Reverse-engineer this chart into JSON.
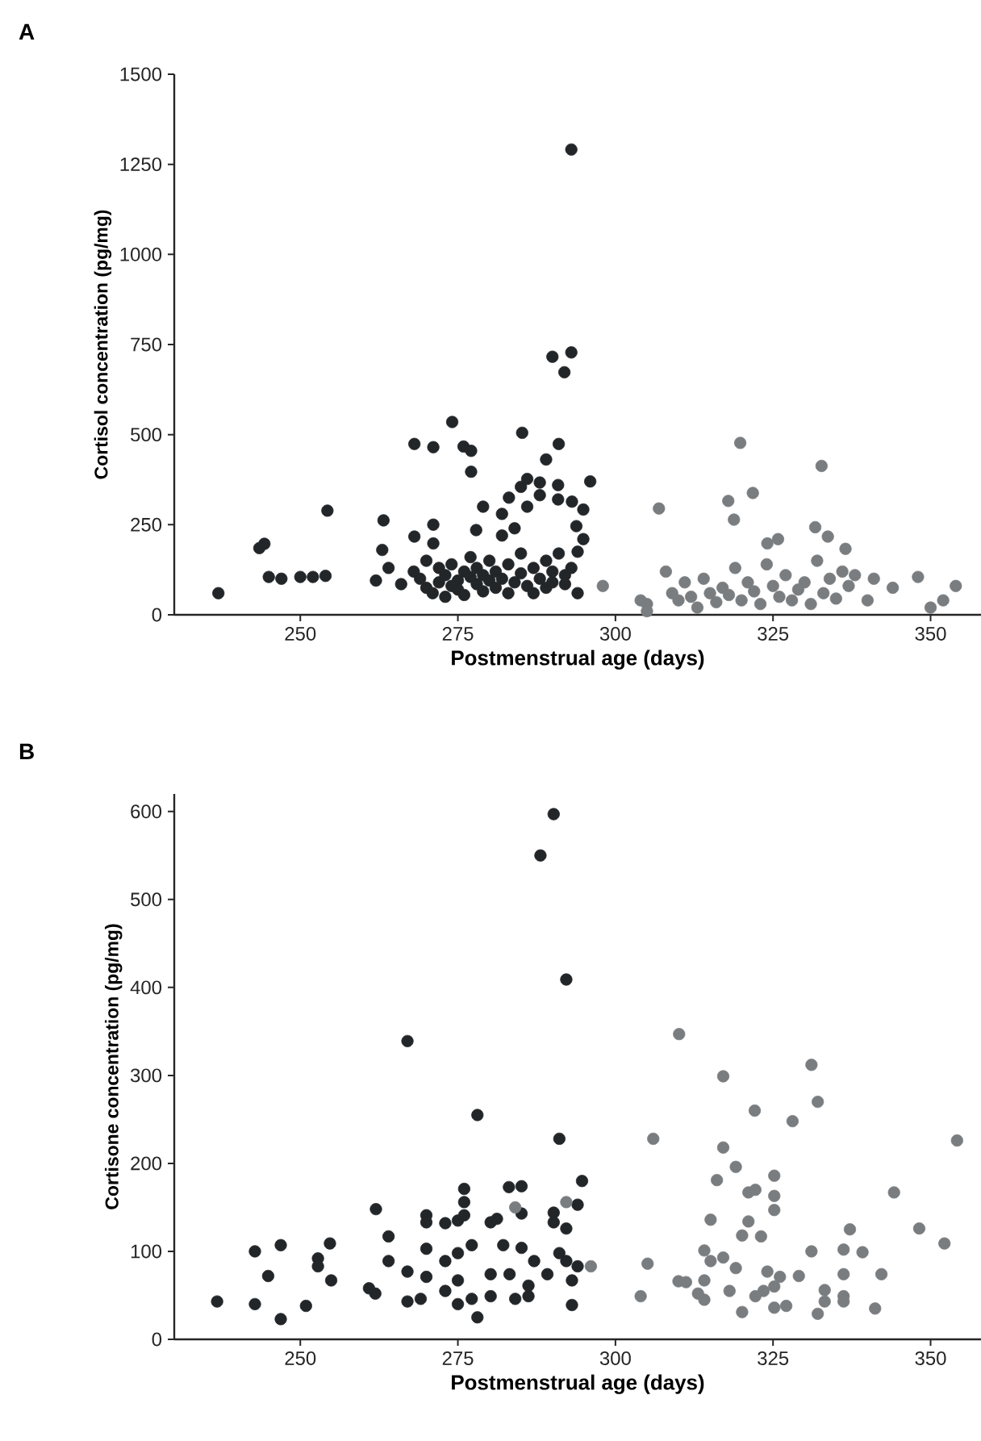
{
  "chart_data": [
    {
      "type": "scatter",
      "title": "A",
      "xlabel": "Postmenstrual age (days)",
      "ylabel": "Cortisol concentration (pg/mg)",
      "xlim": [
        230,
        358
      ],
      "xticks": [
        250,
        275,
        300,
        325,
        350
      ],
      "ylim": [
        0,
        1500
      ],
      "yticks": [
        0,
        250,
        500,
        750,
        1000,
        1250,
        1500
      ],
      "marker": "circle",
      "series": [
        {
          "color": "#222629",
          "x": [
            293.0,
            290.0,
            293.0,
            291.9,
            274.1,
            268.1,
            271.1,
            275.9,
            277.1,
            285.2,
            291.0,
            289.0,
            277.1,
            286.0,
            285.0,
            288.0,
            288.0,
            290.9,
            290.9,
            293.1,
            283.1,
            286.0,
            279.0,
            282.0,
            254.3,
            263.2,
            271.1,
            268.1,
            244.3,
            271.1,
            277.9,
            282.0,
            284.0,
            293.8,
            296.0,
            294.9,
            294.9,
            237,
            243.5,
            245,
            247,
            250,
            252,
            254,
            262,
            263,
            264,
            266,
            268,
            269,
            270,
            270,
            271,
            272,
            272,
            273,
            273,
            274,
            274,
            275,
            275,
            276,
            276,
            277,
            277,
            278,
            278,
            279,
            279,
            280,
            280,
            281,
            281,
            282,
            283,
            283,
            284,
            285,
            285,
            286,
            287,
            287,
            288,
            289,
            289,
            290,
            290,
            291,
            292,
            292,
            293,
            294,
            294
          ],
          "values": [
            1291,
            716,
            728,
            673,
            535,
            474,
            465,
            467,
            455,
            505,
            474,
            431,
            397,
            377,
            355,
            367,
            332,
            360,
            320,
            314,
            325,
            300,
            300,
            280,
            289,
            262,
            250,
            217,
            197,
            198,
            235,
            220,
            240,
            246,
            370,
            292,
            210,
            60,
            185,
            105,
            100,
            105,
            105,
            108,
            95,
            180,
            130,
            85,
            120,
            100,
            75,
            150,
            60,
            90,
            130,
            110,
            50,
            80,
            140,
            95,
            70,
            120,
            55,
            105,
            160,
            85,
            130,
            65,
            110,
            95,
            150,
            75,
            120,
            100,
            60,
            140,
            90,
            170,
            115,
            80,
            130,
            60,
            100,
            150,
            75,
            120,
            90,
            170,
            110,
            85,
            130,
            60,
            175
          ]
        },
        {
          "color": "#7a7d80",
          "x": [
            306.9,
            319.8,
            317.9,
            321.8,
            318.8,
            332.7,
            331.7,
            333.7,
            324.1,
            325.8,
            336.5,
            298,
            304,
            305,
            305,
            308,
            309,
            310,
            311,
            312,
            313,
            314,
            315,
            316,
            317,
            318,
            319,
            320,
            321,
            322,
            323,
            324,
            325,
            326,
            327,
            328,
            329,
            330,
            331,
            332,
            333,
            334,
            335,
            336,
            337,
            338,
            340,
            341,
            344,
            348,
            350,
            352,
            354
          ],
          "values": [
            295,
            477,
            316,
            338,
            264,
            413,
            243,
            217,
            198,
            210,
            183,
            80,
            40,
            10,
            30,
            120,
            60,
            40,
            90,
            50,
            20,
            100,
            60,
            35,
            75,
            55,
            130,
            40,
            90,
            65,
            30,
            140,
            80,
            50,
            110,
            40,
            70,
            90,
            30,
            150,
            60,
            100,
            45,
            120,
            80,
            110,
            40,
            100,
            75,
            105,
            20,
            40,
            80
          ]
        }
      ]
    },
    {
      "type": "scatter",
      "title": "B",
      "xlabel": "Postmenstrual age (days)",
      "ylabel": "Cortisone concentration (pg/mg)",
      "xlim": [
        230,
        358
      ],
      "xticks": [
        250,
        275,
        300,
        325,
        350
      ],
      "ylim": [
        0,
        620
      ],
      "yticks": [
        0,
        100,
        200,
        300,
        400,
        500,
        600
      ],
      "marker": "circle",
      "series": [
        {
          "color": "#222629",
          "x": [
            290.2,
            288.1,
            292.2,
            267.0,
            278.1,
            291.1,
            294.7,
            236.8,
            242.8,
            242.8,
            246.9,
            244.9,
            246.9,
            250.9,
            254.7,
            252.8,
            252.8,
            254.9,
            260.9,
            261.9,
            262.0,
            264.0,
            264.0,
            267.0,
            267.0,
            269.1,
            270.0,
            270.0,
            270.0,
            270.0,
            273.0,
            275.0,
            276.0,
            276.0,
            276.0,
            273.0,
            275.0,
            277.2,
            275.0,
            273.0,
            275.0,
            277.2,
            278.1,
            280.2,
            280.2,
            280.2,
            281.2,
            282.2,
            283.2,
            283.1,
            285.1,
            285.1,
            285.1,
            284.1,
            286.2,
            287.1,
            286.2,
            289.2,
            290.2,
            290.2,
            292.2,
            291.1,
            292.2,
            293.1,
            293.1,
            294.0,
            294.0
          ],
          "values": [
            597,
            550,
            409,
            339,
            255,
            228,
            180,
            43,
            100,
            40,
            107,
            72,
            23,
            38,
            109,
            92,
            83,
            67,
            58,
            52,
            148,
            117,
            89,
            77,
            43,
            46,
            141,
            133,
            103,
            71,
            132,
            135,
            171,
            156,
            141,
            89,
            98,
            107,
            67,
            55,
            40,
            46,
            25,
            74,
            49,
            133,
            137,
            107,
            74,
            173,
            174,
            143,
            104,
            46,
            49,
            89,
            61,
            74,
            144,
            133,
            126,
            98,
            89,
            67,
            39,
            153,
            83
          ]
        },
        {
          "color": "#7a7d80",
          "x": [
            284.1,
            292.2,
            296.1,
            306.0,
            310.1,
            305.1,
            304.0,
            317.1,
            322.1,
            331.1,
            332.1,
            328.1,
            317.1,
            319.1,
            316.1,
            325.2,
            321.1,
            322.2,
            325.2,
            325.2,
            315.1,
            321.1,
            320.1,
            323.1,
            314.1,
            315.1,
            317.1,
            319.1,
            310.0,
            311.2,
            314.1,
            313.1,
            314.1,
            318.1,
            320.1,
            324.1,
            326.1,
            322.2,
            323.5,
            325.2,
            325.2,
            327.1,
            329.1,
            331.1,
            333.2,
            333.2,
            332.1,
            336.2,
            337.2,
            339.2,
            336.2,
            336.2,
            336.2,
            342.2,
            341.2,
            344.2,
            348.2,
            352.2,
            354.2
          ],
          "values": [
            150,
            156,
            83,
            228,
            347,
            86,
            49,
            299,
            260,
            312,
            270,
            248,
            218,
            196,
            181,
            186,
            167,
            170,
            163,
            147,
            136,
            134,
            118,
            117,
            101,
            89,
            93,
            81,
            66,
            65,
            67,
            52,
            45,
            55,
            31,
            77,
            71,
            49,
            55,
            60,
            36,
            38,
            72,
            100,
            56,
            43,
            29,
            102,
            125,
            99,
            74,
            49,
            43,
            74,
            35,
            167,
            126,
            109,
            226
          ]
        }
      ]
    }
  ]
}
